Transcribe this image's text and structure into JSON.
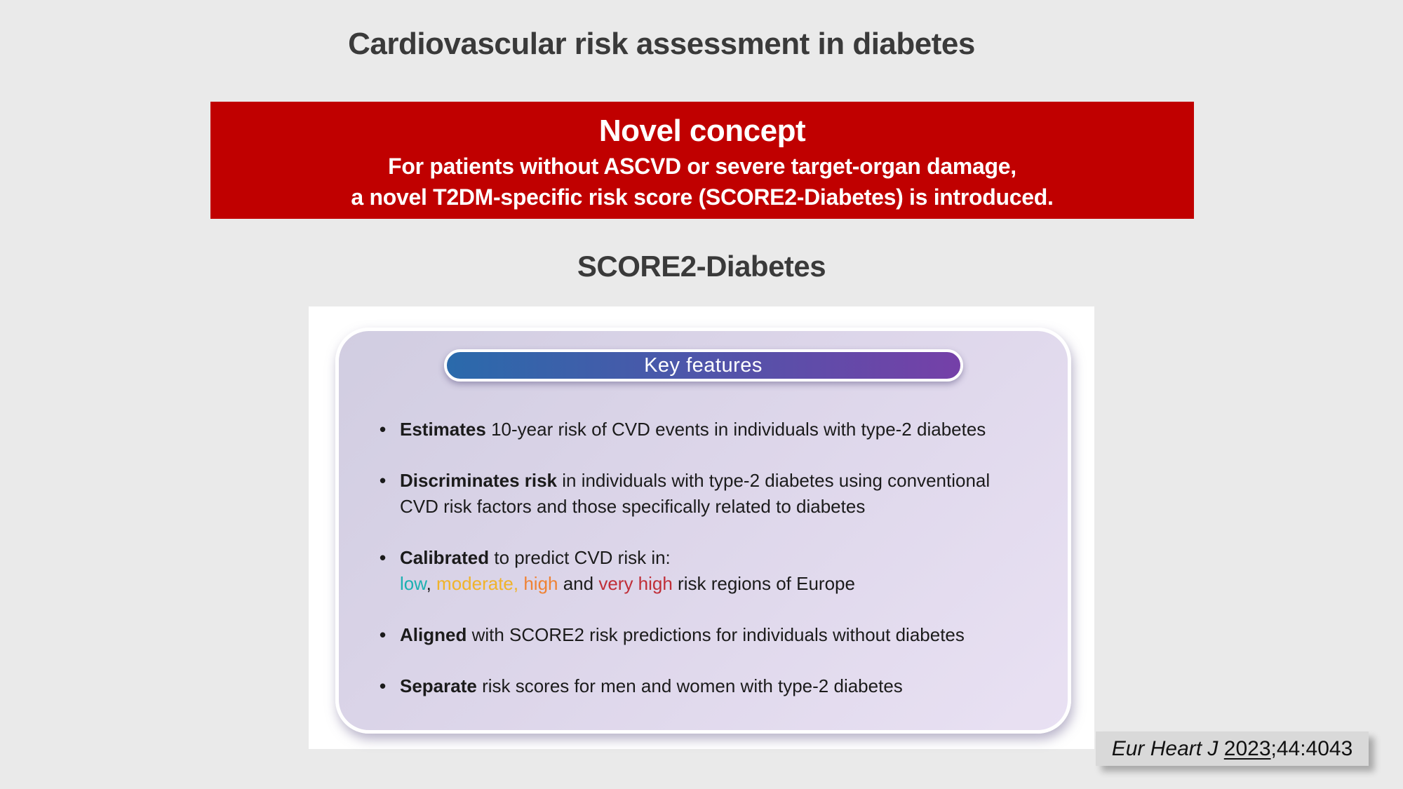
{
  "page": {
    "background": "#eaeaea",
    "title": "Cardiovascular risk assessment in diabetes"
  },
  "banner": {
    "background": "#c00000",
    "heading": "Novel concept",
    "line1": "For patients without ASCVD or severe target-organ damage,",
    "line2": "a novel T2DM-specific risk score (SCORE2-Diabetes) is introduced."
  },
  "section": {
    "title": "SCORE2-Diabetes"
  },
  "card": {
    "header": "Key features",
    "pill_gradient_left": "#2a6aab",
    "pill_gradient_right": "#7540a8",
    "colors": {
      "teal": "#1cb1b1",
      "amber": "#f0b32a",
      "orange": "#ef8234",
      "crimson": "#c02e38"
    },
    "bullets": [
      {
        "segments": [
          {
            "text": "Estimates",
            "bold": true
          },
          {
            "text": " 10-year risk of CVD events in individuals with type-2 diabetes"
          }
        ]
      },
      {
        "segments": [
          {
            "text": "Discriminates risk",
            "bold": true
          },
          {
            "text": " in individuals with type-2 diabetes using conventional"
          },
          {
            "br": true
          },
          {
            "text": "CVD risk factors and those specifically related to diabetes"
          }
        ]
      },
      {
        "segments": [
          {
            "text": "Calibrated",
            "bold": true
          },
          {
            "text": " to predict CVD risk in:"
          },
          {
            "br": true
          },
          {
            "text": "low",
            "color": "teal"
          },
          {
            "text": ", "
          },
          {
            "text": "moderate,",
            "color": "amber"
          },
          {
            "text": " "
          },
          {
            "text": "high",
            "color": "orange"
          },
          {
            "text": " and "
          },
          {
            "text": "very high",
            "color": "crimson"
          },
          {
            "text": " risk regions of Europe"
          }
        ]
      },
      {
        "segments": [
          {
            "text": "Aligned",
            "bold": true
          },
          {
            "text": " with SCORE2 risk predictions for individuals without diabetes"
          }
        ]
      },
      {
        "segments": [
          {
            "text": "Separate",
            "bold": true
          },
          {
            "text": " risk scores for men and women with type-2 diabetes"
          }
        ]
      }
    ]
  },
  "citation": {
    "journal": "Eur Heart J ",
    "year": "2023",
    "ref": ";44:4043"
  }
}
